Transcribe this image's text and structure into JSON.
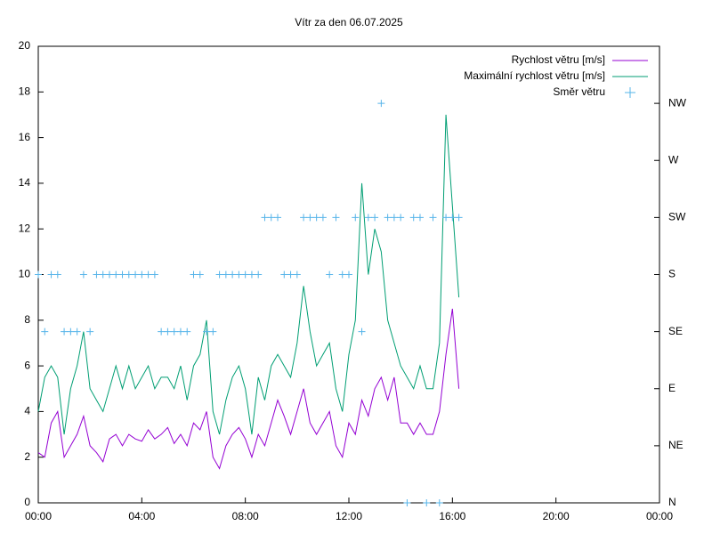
{
  "chart_data": {
    "type": "line",
    "title": "Vítr za den 06.07.2025",
    "x": [
      0,
      0.25,
      0.5,
      0.75,
      1,
      1.25,
      1.5,
      1.75,
      2,
      2.25,
      2.5,
      2.75,
      3,
      3.25,
      3.5,
      3.75,
      4,
      4.25,
      4.5,
      4.75,
      5,
      5.25,
      5.5,
      5.75,
      6,
      6.25,
      6.5,
      6.75,
      7,
      7.25,
      7.5,
      7.75,
      8,
      8.25,
      8.5,
      8.75,
      9,
      9.25,
      9.5,
      9.75,
      10,
      10.25,
      10.5,
      10.75,
      11,
      11.25,
      11.5,
      11.75,
      12,
      12.25,
      12.5,
      12.75,
      13,
      13.25,
      13.5,
      13.75,
      14,
      14.25,
      14.5,
      14.75,
      15,
      15.25,
      15.5,
      15.75,
      16,
      16.25
    ],
    "series": [
      {
        "name": "Rychlost větru [m/s]",
        "color": "#9400d3",
        "style": "lines",
        "values": [
          2.2,
          2.0,
          3.5,
          4.0,
          2.0,
          2.5,
          3.0,
          3.8,
          2.5,
          2.2,
          1.8,
          2.8,
          3.0,
          2.5,
          3.0,
          2.8,
          2.7,
          3.2,
          2.8,
          3.0,
          3.3,
          2.6,
          3.0,
          2.5,
          3.5,
          3.2,
          4.0,
          2.0,
          1.5,
          2.5,
          3.0,
          3.3,
          2.8,
          2.0,
          3.0,
          2.5,
          3.5,
          4.5,
          3.8,
          3.0,
          4.0,
          5.0,
          3.5,
          3.0,
          3.5,
          4.0,
          2.5,
          2.0,
          3.5,
          3.0,
          4.5,
          3.8,
          5.0,
          5.5,
          4.5,
          5.5,
          3.5,
          3.5,
          3.0,
          3.5,
          3.0,
          3.0,
          4.0,
          6.5,
          8.5,
          5.0
        ]
      },
      {
        "name": "Maximální rychlost větru [m/s]",
        "color": "#009e73",
        "style": "lines",
        "values": [
          4.0,
          5.5,
          6.0,
          5.5,
          3.0,
          5.0,
          6.0,
          7.5,
          5.0,
          4.5,
          4.0,
          5.0,
          6.0,
          5.0,
          6.0,
          5.0,
          5.5,
          6.0,
          5.0,
          5.5,
          5.5,
          5.0,
          6.0,
          4.5,
          6.0,
          6.5,
          8.0,
          4.0,
          3.0,
          4.5,
          5.5,
          6.0,
          5.0,
          3.0,
          5.5,
          4.5,
          6.0,
          6.5,
          6.0,
          5.5,
          7.0,
          9.5,
          7.5,
          6.0,
          6.5,
          7.0,
          5.0,
          4.0,
          6.5,
          8.0,
          14.0,
          10.0,
          12.0,
          11.0,
          8.0,
          7.0,
          6.0,
          5.5,
          5.0,
          6.0,
          5.0,
          5.0,
          7.0,
          17.0,
          13.0,
          9.0
        ]
      },
      {
        "name": "Směr větru",
        "color": "#56b4e9",
        "style": "points",
        "axis": "y2",
        "values": [
          180,
          135,
          180,
          180,
          135,
          135,
          135,
          180,
          135,
          180,
          180,
          180,
          180,
          180,
          180,
          180,
          180,
          180,
          180,
          135,
          135,
          135,
          135,
          135,
          180,
          180,
          135,
          135,
          180,
          180,
          180,
          180,
          180,
          180,
          180,
          225,
          225,
          225,
          180,
          180,
          180,
          225,
          225,
          225,
          225,
          180,
          225,
          180,
          180,
          225,
          135,
          225,
          225,
          315,
          225,
          225,
          225,
          0,
          225,
          225,
          0,
          225,
          0,
          225,
          225,
          225
        ]
      }
    ],
    "xlim": [
      0,
      24
    ],
    "xticks": [
      {
        "value": 0,
        "label": "00:00"
      },
      {
        "value": 4,
        "label": "04:00"
      },
      {
        "value": 8,
        "label": "08:00"
      },
      {
        "value": 12,
        "label": "12:00"
      },
      {
        "value": 16,
        "label": "16:00"
      },
      {
        "value": 20,
        "label": "20:00"
      },
      {
        "value": 24,
        "label": "00:00"
      }
    ],
    "ylim": [
      0,
      20
    ],
    "yticks": [
      0,
      2,
      4,
      6,
      8,
      10,
      12,
      14,
      16,
      18,
      20
    ],
    "y2lim": [
      0,
      360
    ],
    "y2ticks": [
      {
        "value": 0,
        "label": "N"
      },
      {
        "value": 45,
        "label": "NE"
      },
      {
        "value": 90,
        "label": "E"
      },
      {
        "value": 135,
        "label": "SE"
      },
      {
        "value": 180,
        "label": "S"
      },
      {
        "value": 225,
        "label": "SW"
      },
      {
        "value": 270,
        "label": "W"
      },
      {
        "value": 315,
        "label": "NW"
      }
    ],
    "legend": "top-right",
    "grid": false
  }
}
